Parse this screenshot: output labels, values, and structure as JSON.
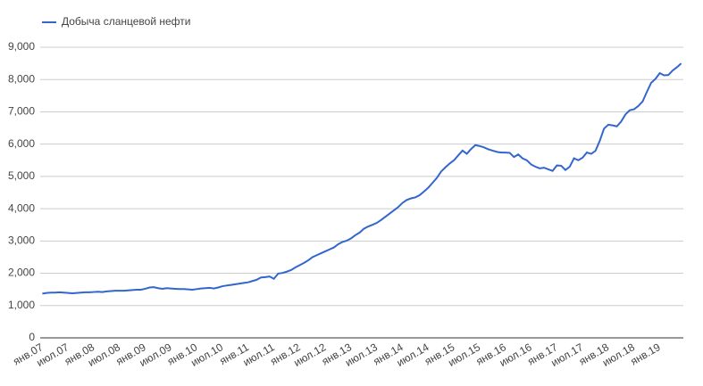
{
  "chart_data": {
    "type": "line",
    "categories": [
      "янв.07",
      null,
      null,
      null,
      null,
      null,
      "июл.07",
      null,
      null,
      null,
      null,
      null,
      "янв.08",
      null,
      null,
      null,
      null,
      null,
      "июл.08",
      null,
      null,
      null,
      null,
      null,
      "янв.09",
      null,
      null,
      null,
      null,
      null,
      "июл.09",
      null,
      null,
      null,
      null,
      null,
      "янв.10",
      null,
      null,
      null,
      null,
      null,
      "июл.10",
      null,
      null,
      null,
      null,
      null,
      "янв.11",
      null,
      null,
      null,
      null,
      null,
      "июл.11",
      null,
      null,
      null,
      null,
      null,
      "янв.12",
      null,
      null,
      null,
      null,
      null,
      "июл.12",
      null,
      null,
      null,
      null,
      null,
      "янв.13",
      null,
      null,
      null,
      null,
      null,
      "июл.13",
      null,
      null,
      null,
      null,
      null,
      "янв.14",
      null,
      null,
      null,
      null,
      null,
      "июл.14",
      null,
      null,
      null,
      null,
      null,
      "янв.15",
      null,
      null,
      null,
      null,
      null,
      "июл.15",
      null,
      null,
      null,
      null,
      null,
      "янв.16",
      null,
      null,
      null,
      null,
      null,
      "июл.16",
      null,
      null,
      null,
      null,
      null,
      "янв.17",
      null,
      null,
      null,
      null,
      null,
      "июл.17",
      null,
      null,
      null,
      null,
      null,
      "янв.18",
      null,
      null,
      null,
      null,
      null,
      "июл.18",
      null,
      null,
      null,
      null,
      null,
      "янв.19",
      null,
      null,
      null,
      null,
      null
    ],
    "series": [
      {
        "name": "Добыча сланцевой нефти",
        "color": "#3366cc",
        "values": [
          1370,
          1390,
          1400,
          1400,
          1410,
          1400,
          1390,
          1380,
          1390,
          1400,
          1410,
          1410,
          1420,
          1430,
          1420,
          1440,
          1450,
          1460,
          1460,
          1460,
          1470,
          1480,
          1490,
          1490,
          1520,
          1560,
          1570,
          1540,
          1520,
          1540,
          1530,
          1520,
          1510,
          1510,
          1500,
          1490,
          1510,
          1530,
          1540,
          1550,
          1530,
          1560,
          1600,
          1620,
          1640,
          1660,
          1680,
          1700,
          1720,
          1760,
          1800,
          1870,
          1880,
          1900,
          1830,
          1990,
          2010,
          2050,
          2100,
          2180,
          2250,
          2320,
          2400,
          2500,
          2560,
          2620,
          2680,
          2740,
          2800,
          2900,
          2970,
          3010,
          3080,
          3180,
          3260,
          3380,
          3450,
          3500,
          3560,
          3650,
          3750,
          3850,
          3950,
          4050,
          4180,
          4270,
          4320,
          4350,
          4420,
          4530,
          4650,
          4800,
          4950,
          5150,
          5280,
          5400,
          5500,
          5650,
          5800,
          5700,
          5850,
          5970,
          5940,
          5900,
          5840,
          5800,
          5760,
          5740,
          5740,
          5730,
          5600,
          5680,
          5560,
          5500,
          5370,
          5300,
          5250,
          5270,
          5220,
          5170,
          5340,
          5330,
          5200,
          5300,
          5560,
          5500,
          5580,
          5740,
          5700,
          5790,
          6100,
          6480,
          6600,
          6580,
          6550,
          6700,
          6920,
          7050,
          7080,
          7180,
          7320,
          7620,
          7900,
          8020,
          8200,
          8130,
          8140,
          8280,
          8380,
          8500
        ]
      }
    ],
    "ylim": [
      0,
      9000
    ],
    "yticks": [
      0,
      {
        "value": 1000,
        "label": "1,000"
      },
      {
        "value": 2000,
        "label": "2,000"
      },
      {
        "value": 3000,
        "label": "3,000"
      },
      {
        "value": 4000,
        "label": "4,000"
      },
      {
        "value": 5000,
        "label": "5,000"
      },
      {
        "value": 6000,
        "label": "6,000"
      },
      {
        "value": 7000,
        "label": "7,000"
      },
      {
        "value": 8000,
        "label": "8,000"
      },
      {
        "value": 9000,
        "label": "9,000"
      }
    ],
    "grid": true,
    "legend": "top-left"
  }
}
